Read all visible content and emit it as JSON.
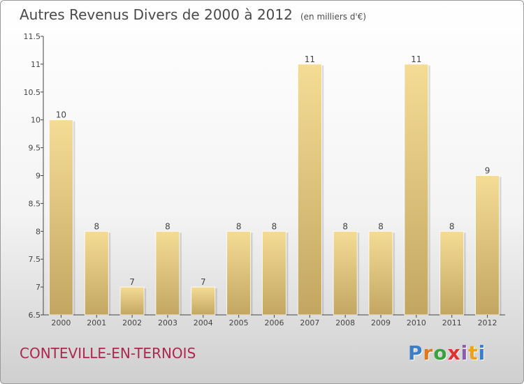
{
  "title": "Autres Revenus Divers de 2000 à 2012",
  "unit": "(en milliers d'€)",
  "location": "CONTEVILLE-EN-TERNOIS",
  "logo": {
    "text": "Proxiti",
    "letters": [
      "P",
      "r",
      "o",
      "x",
      "i",
      "t",
      "i"
    ],
    "letter_colors": [
      "#3a7fc8",
      "#e07820",
      "#3aa040",
      "#e03030",
      "#8a5bb0",
      "#f0a020",
      "#3a7fc8"
    ]
  },
  "colors": {
    "bar_top": "#f5dc95",
    "bar_bottom": "#c2a661",
    "axis": "#444444",
    "text": "#444444",
    "location": "#b0254f"
  },
  "chart_data": {
    "type": "bar",
    "categories": [
      "2000",
      "2001",
      "2002",
      "2003",
      "2004",
      "2005",
      "2006",
      "2007",
      "2008",
      "2009",
      "2010",
      "2011",
      "2012"
    ],
    "values": [
      10,
      8,
      7,
      8,
      7,
      8,
      8,
      11,
      8,
      8,
      11,
      8,
      9
    ],
    "ylim": [
      6.5,
      11.5
    ],
    "yticks": [
      6.5,
      7,
      7.5,
      8,
      8.5,
      9,
      9.5,
      10,
      10.5,
      11,
      11.5
    ],
    "ytick_labels": [
      "6.5",
      "7",
      "7.5",
      "8",
      "8.5",
      "9",
      "9.5",
      "10",
      "10.5",
      "11",
      "11.5"
    ],
    "grid": false
  }
}
